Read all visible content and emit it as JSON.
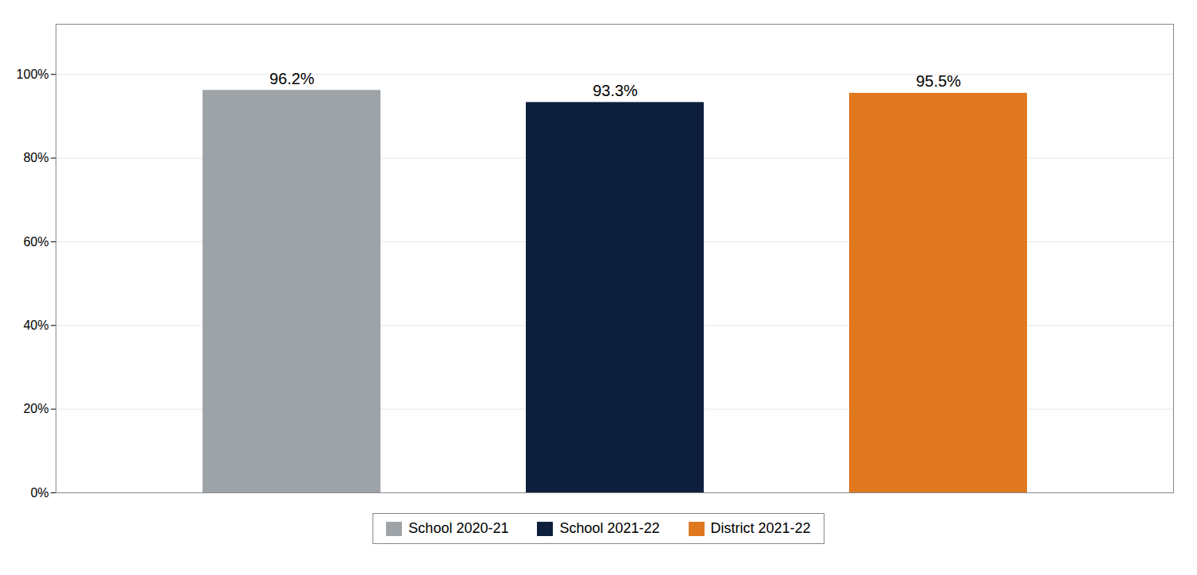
{
  "chart_data": {
    "type": "bar",
    "categories": [
      "School 2020-21",
      "School 2021-22",
      "District 2021-22"
    ],
    "values": [
      96.2,
      93.3,
      95.5
    ],
    "value_labels": [
      "96.2%",
      "93.3%",
      "95.5%"
    ],
    "colors": [
      "#9EA3A8",
      "#0D1F3C",
      "#E07820"
    ],
    "ylim": [
      0,
      112
    ],
    "yticks": [
      {
        "value": 0,
        "label": "0%"
      },
      {
        "value": 20,
        "label": "20%"
      },
      {
        "value": 40,
        "label": "40%"
      },
      {
        "value": 60,
        "label": "60%"
      },
      {
        "value": 80,
        "label": "80%"
      },
      {
        "value": 100,
        "label": "100%"
      }
    ],
    "grid": true,
    "data_labels": true,
    "legend": "bottom",
    "tick_labels": "y"
  }
}
